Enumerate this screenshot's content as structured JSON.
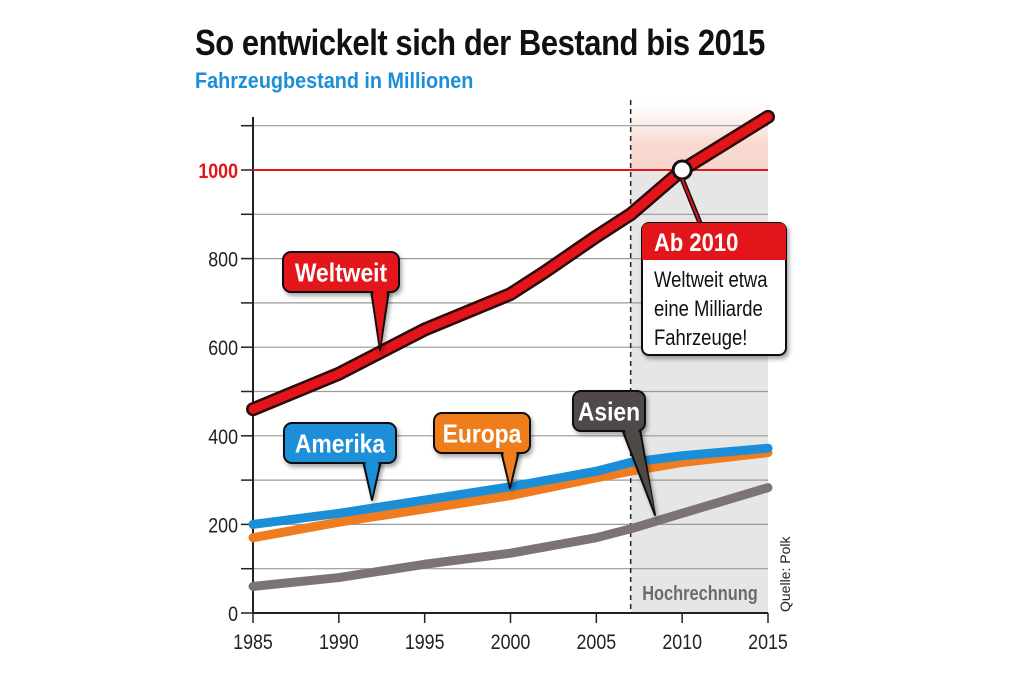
{
  "header": {
    "title": "So entwickelt sich der Bestand bis 2015",
    "subtitle": "Fahrzeugbestand in Millionen"
  },
  "colors": {
    "title": "#111111",
    "subtitle": "#1a8fd8",
    "weltweit": "#e3141a",
    "amerika": "#1a8fd8",
    "europa": "#ef7d1f",
    "asien": "#7c7474",
    "asien_label": "#4f4948",
    "grid": "#9a9a9a",
    "projection_shade": "#e6e6e6"
  },
  "chart_data": {
    "type": "line",
    "title": "So entwickelt sich der Bestand bis 2015",
    "subtitle": "Fahrzeugbestand in Millionen",
    "xlabel": "",
    "ylabel": "",
    "xlim": [
      1985,
      2015
    ],
    "ylim": [
      0,
      1130
    ],
    "x_ticks": [
      "1985",
      "1990",
      "1995",
      "2000",
      "2005",
      "2010",
      "2015"
    ],
    "y_ticks": [
      "0",
      "200",
      "400",
      "600",
      "800",
      "1000"
    ],
    "grid": true,
    "highlight_line": {
      "value": 1000,
      "label": "1000"
    },
    "projection": {
      "start": 2007,
      "label": "Hochrechnung"
    },
    "series": [
      {
        "name": "Weltweit",
        "color_key": "weltweit",
        "x": [
          1985,
          1990,
          1992,
          1995,
          2000,
          2002,
          2005,
          2007,
          2010,
          2015
        ],
        "values": [
          460,
          540,
          580,
          640,
          720,
          770,
          850,
          900,
          1000,
          1120
        ]
      },
      {
        "name": "Amerika",
        "color_key": "amerika",
        "x": [
          1985,
          1990,
          1995,
          2000,
          2005,
          2007,
          2010,
          2015
        ],
        "values": [
          200,
          225,
          255,
          285,
          320,
          340,
          355,
          372
        ]
      },
      {
        "name": "Europa",
        "color_key": "europa",
        "x": [
          1985,
          1990,
          1995,
          2000,
          2005,
          2007,
          2010,
          2015
        ],
        "values": [
          170,
          205,
          235,
          265,
          305,
          320,
          340,
          362
        ]
      },
      {
        "name": "Asien",
        "color_key": "asien",
        "x": [
          1985,
          1990,
          1995,
          2000,
          2005,
          2007,
          2010,
          2015
        ],
        "values": [
          60,
          80,
          110,
          135,
          170,
          190,
          225,
          283
        ]
      }
    ],
    "annotations": [
      {
        "name": "callout-header",
        "text": "Ab 2010"
      },
      {
        "name": "callout-line-1",
        "text": "Weltweit etwa"
      },
      {
        "name": "callout-line-2",
        "text": "eine Milliarde"
      },
      {
        "name": "callout-line-3",
        "text": "Fahrzeuge!"
      }
    ],
    "source": "Quelle: Polk"
  }
}
